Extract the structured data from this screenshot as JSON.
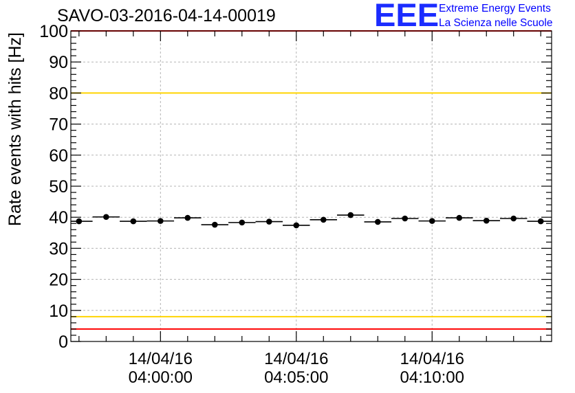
{
  "header": {
    "run_title": "SAVO-03-2016-04-14-00019"
  },
  "logo": {
    "mark": "EEE",
    "line1": "Extreme Energy Events",
    "line2": "La Scienza nelle Scuole"
  },
  "colors": {
    "limit_red": "#ff0000",
    "limit_yellow": "#ffd400",
    "marker": "#000000",
    "grid": "#b3b3b3",
    "logo_blue": "#1b2cff"
  },
  "chart_data": {
    "type": "scatter",
    "title": "SAVO-03-2016-04-14-00019",
    "xlabel": "",
    "ylabel": "Rate events with hits [Hz]",
    "ylim": [
      0,
      100
    ],
    "yticks": [
      0,
      10,
      20,
      30,
      40,
      50,
      60,
      70,
      80,
      90,
      100
    ],
    "xlim_minutes": [
      -3.3,
      14.4
    ],
    "xticks": [
      {
        "minute": 0,
        "date": "14/04/16",
        "time": "04:00:00"
      },
      {
        "minute": 5,
        "date": "14/04/16",
        "time": "04:05:00"
      },
      {
        "minute": 10,
        "date": "14/04/16",
        "time": "04:10:00"
      }
    ],
    "bin_width_minutes": 1,
    "x_minutes": [
      -3,
      -2,
      -1,
      0,
      1,
      2,
      3,
      4,
      5,
      6,
      7,
      8,
      9,
      10,
      11,
      12,
      13,
      14
    ],
    "values": [
      38.7,
      40.1,
      38.7,
      38.8,
      39.8,
      37.6,
      38.3,
      38.6,
      37.4,
      39.2,
      40.7,
      38.5,
      39.6,
      38.8,
      39.8,
      38.9,
      39.6,
      38.7
    ],
    "reference_lines": [
      {
        "name": "upper-red-limit",
        "value": 100,
        "color": "red"
      },
      {
        "name": "upper-yellow-limit",
        "value": 80,
        "color": "yellow"
      },
      {
        "name": "lower-yellow-limit",
        "value": 8,
        "color": "yellow"
      },
      {
        "name": "lower-red-limit",
        "value": 4,
        "color": "red"
      }
    ],
    "grid": true
  }
}
